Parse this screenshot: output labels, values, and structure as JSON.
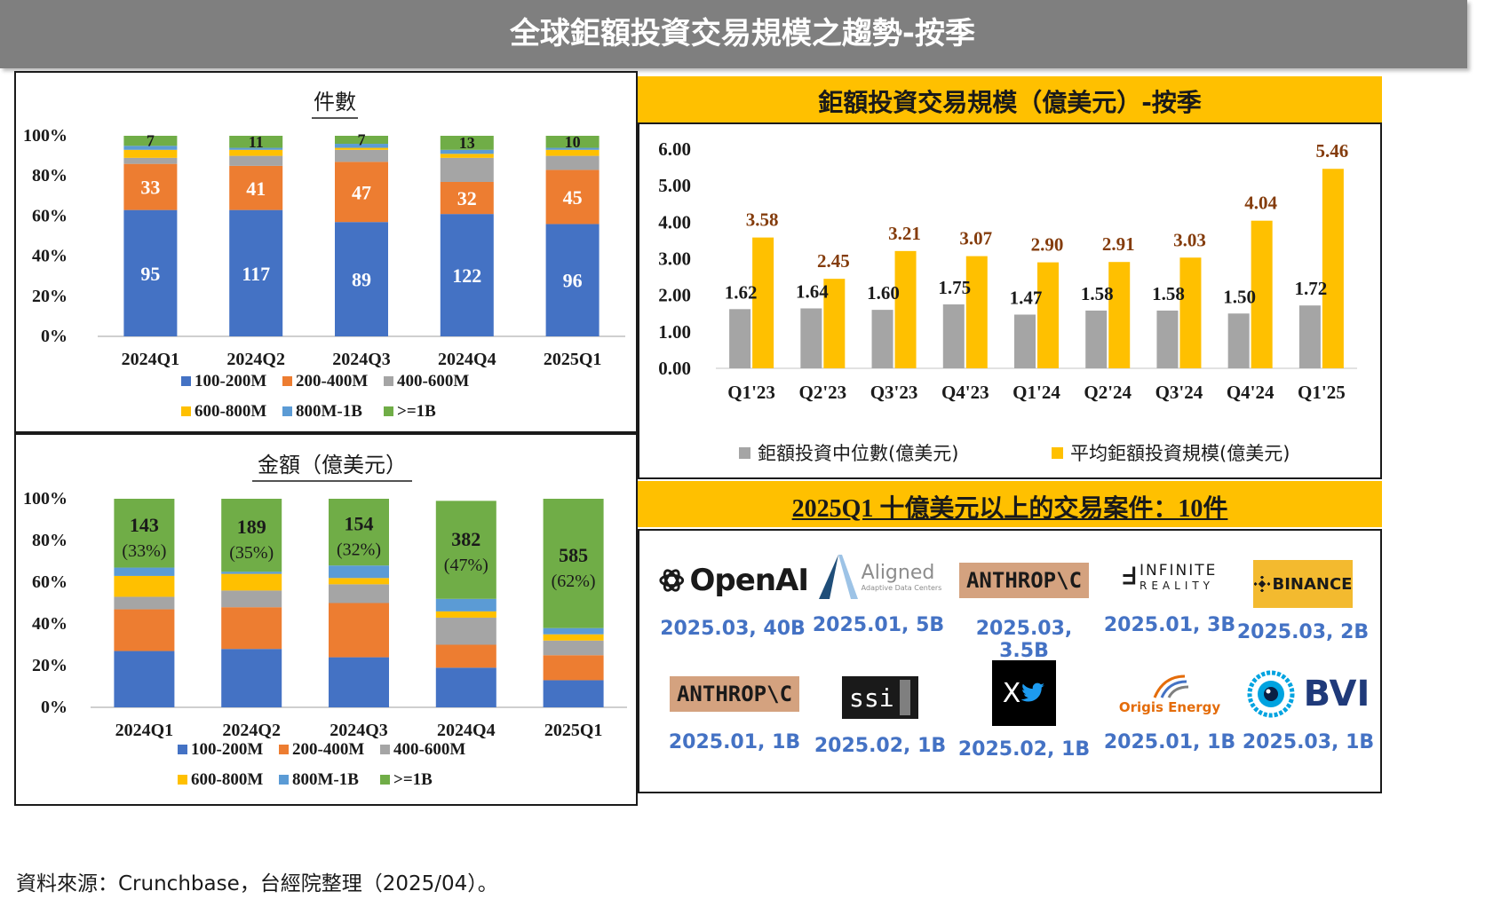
{
  "title": "全球鉅額投資交易規模之趨勢-按季",
  "colors": {
    "c100": "#4472c4",
    "c200": "#ed7d31",
    "c400": "#a5a5a5",
    "c600": "#ffc000",
    "c800": "#5b9bd5",
    "c1b": "#70ad47",
    "median": "#a5a5a5",
    "avg": "#ffc000",
    "valueLabel": "#843c0c",
    "caption": "#4472c4"
  },
  "count_chart": {
    "title": "件數",
    "categories": [
      "2024Q1",
      "2024Q2",
      "2024Q3",
      "2024Q4",
      "2025Q1"
    ],
    "y_ticks": [
      "0%",
      "20%",
      "40%",
      "60%",
      "80%",
      "100%"
    ],
    "legend": [
      "100-200M",
      "200-400M",
      "400-600M",
      "600-800M",
      "800M-1B",
      ">=1B"
    ],
    "shares": [
      [
        0.63,
        0.23,
        0.03,
        0.04,
        0.02,
        0.05
      ],
      [
        0.63,
        0.22,
        0.05,
        0.03,
        0.01,
        0.06
      ],
      [
        0.57,
        0.3,
        0.06,
        0.01,
        0.02,
        0.04
      ],
      [
        0.61,
        0.16,
        0.12,
        0.02,
        0.02,
        0.07
      ],
      [
        0.56,
        0.27,
        0.07,
        0.03,
        0.01,
        0.06
      ]
    ],
    "labels": {
      "b100": [
        "95",
        "117",
        "89",
        "122",
        "96"
      ],
      "b200": [
        "33",
        "41",
        "47",
        "32",
        "45"
      ],
      "b1b": [
        "7",
        "11",
        "7",
        "13",
        "10"
      ]
    }
  },
  "amount_chart": {
    "title": "金額（億美元）",
    "categories": [
      "2024Q1",
      "2024Q2",
      "2024Q3",
      "2024Q4",
      "2025Q1"
    ],
    "y_ticks": [
      "0%",
      "20%",
      "40%",
      "60%",
      "80%",
      "100%"
    ],
    "legend": [
      "100-200M",
      "200-400M",
      "400-600M",
      "600-800M",
      "800M-1B",
      ">=1B"
    ],
    "shares": [
      [
        0.27,
        0.2,
        0.06,
        0.1,
        0.04,
        0.33
      ],
      [
        0.28,
        0.2,
        0.08,
        0.08,
        0.01,
        0.35
      ],
      [
        0.24,
        0.26,
        0.09,
        0.03,
        0.06,
        0.32
      ],
      [
        0.19,
        0.11,
        0.13,
        0.03,
        0.06,
        0.47
      ],
      [
        0.13,
        0.12,
        0.07,
        0.03,
        0.03,
        0.62
      ]
    ],
    "labels": {
      "value": [
        "143",
        "189",
        "154",
        "382",
        "585"
      ],
      "pct": [
        "(33%)",
        "(35%)",
        "(32%)",
        "(47%)",
        "(62%)"
      ]
    }
  },
  "chart_data": {
    "type": "bar",
    "title": "鉅額投資交易規模（億美元）-按季",
    "categories": [
      "Q1'23",
      "Q2'23",
      "Q3'23",
      "Q4'23",
      "Q1'24",
      "Q2'24",
      "Q3'24",
      "Q4'24",
      "Q1'25"
    ],
    "series": [
      {
        "name": "鉅額投資中位數(億美元)",
        "values": [
          1.62,
          1.64,
          1.6,
          1.75,
          1.47,
          1.58,
          1.58,
          1.5,
          1.72
        ]
      },
      {
        "name": "平均鉅額投資規模(億美元)",
        "values": [
          3.58,
          2.45,
          3.21,
          3.07,
          2.9,
          2.91,
          3.03,
          4.04,
          5.46
        ]
      }
    ],
    "y_ticks": [
      "0.00",
      "1.00",
      "2.00",
      "3.00",
      "4.00",
      "5.00",
      "6.00"
    ],
    "ylim": [
      0,
      6
    ],
    "median_labels": [
      "1.62",
      "1.64",
      "1.60",
      "1.75",
      "1.47",
      "1.58",
      "1.58",
      "1.50",
      "1.72"
    ],
    "avg_labels": [
      "3.58",
      "2.45",
      "3.21",
      "3.07",
      "2.90",
      "2.91",
      "3.03",
      "4.04",
      "5.46"
    ],
    "legend_position": "bottom"
  },
  "deals": {
    "title": "2025Q1 十億美元以上的交易案件：10件",
    "items": [
      {
        "logo_text": "OpenAI",
        "caption": "2025.03, 40B"
      },
      {
        "logo_text": "Aligned",
        "logo_sub": "Adaptive Data Centers",
        "caption": "2025.01, 5B"
      },
      {
        "logo_text": "ANTHROP\\C",
        "caption": "2025.03, 3.5B"
      },
      {
        "logo_text": "INFINITE",
        "logo_sub": "REALITY",
        "caption": "2025.01, 3B"
      },
      {
        "logo_text": "BINANCE",
        "caption": "2025.03, 2B"
      },
      {
        "logo_text": "ANTHROP\\C",
        "caption": "2025.01, 1B"
      },
      {
        "logo_text": "ssi",
        "caption": "2025.02, 1B"
      },
      {
        "logo_text": "X",
        "caption": "2025.02, 1B"
      },
      {
        "logo_text": "Origis Energy",
        "caption": "2025.01, 1B"
      },
      {
        "logo_text": "BVI",
        "caption": "2025.03, 1B"
      }
    ]
  },
  "source": "資料來源：Crunchbase，台經院整理（2025/04）。"
}
